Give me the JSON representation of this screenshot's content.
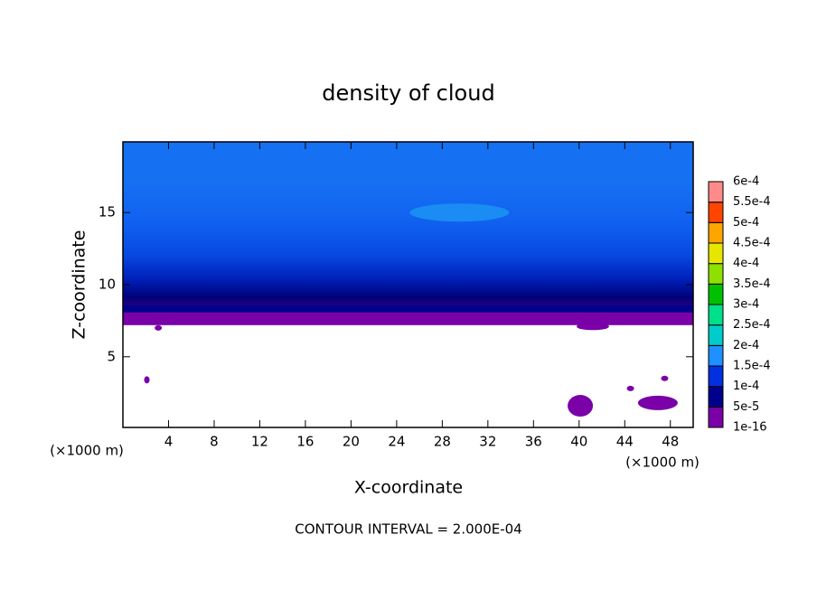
{
  "chart_data": {
    "type": "contour",
    "title": "density of cloud",
    "x_label": "X-coordinate",
    "y_label": "Z-coordinate",
    "x_unit": "(×1000 m)",
    "y_unit": "(×1000 m)",
    "footer": "CONTOUR INTERVAL = 2.000E-04",
    "xlim": [
      0,
      50
    ],
    "xticks": [
      4,
      8,
      12,
      16,
      20,
      24,
      28,
      32,
      36,
      40,
      44,
      48
    ],
    "ylim": [
      0.1,
      19.9
    ],
    "yticks": [
      5,
      10,
      15
    ],
    "colorbar": {
      "levels": [
        {
          "value": 1e-16,
          "label": "1e-16"
        },
        {
          "value": 5e-05,
          "label": "5e-5"
        },
        {
          "value": 0.0001,
          "label": "1e-4"
        },
        {
          "value": 0.00015,
          "label": "1.5e-4"
        },
        {
          "value": 0.0002,
          "label": "2e-4"
        },
        {
          "value": 0.00025,
          "label": "2.5e-4"
        },
        {
          "value": 0.0003,
          "label": "3e-4"
        },
        {
          "value": 0.00035,
          "label": "3.5e-4"
        },
        {
          "value": 0.0004,
          "label": "4e-4"
        },
        {
          "value": 0.00045,
          "label": "4.5e-4"
        },
        {
          "value": 0.0005,
          "label": "5e-4"
        },
        {
          "value": 0.00055,
          "label": "5.5e-4"
        },
        {
          "value": 0.0006,
          "label": "6e-4"
        }
      ],
      "colors": [
        "#7a00a8",
        "#00008c",
        "#0030e0",
        "#1e90ff",
        "#00cccc",
        "#00e08a",
        "#00c000",
        "#8ee000",
        "#e6e600",
        "#ffa500",
        "#ff4500",
        "#ff2020"
      ],
      "top_color": "#ff8a8a"
    }
  }
}
